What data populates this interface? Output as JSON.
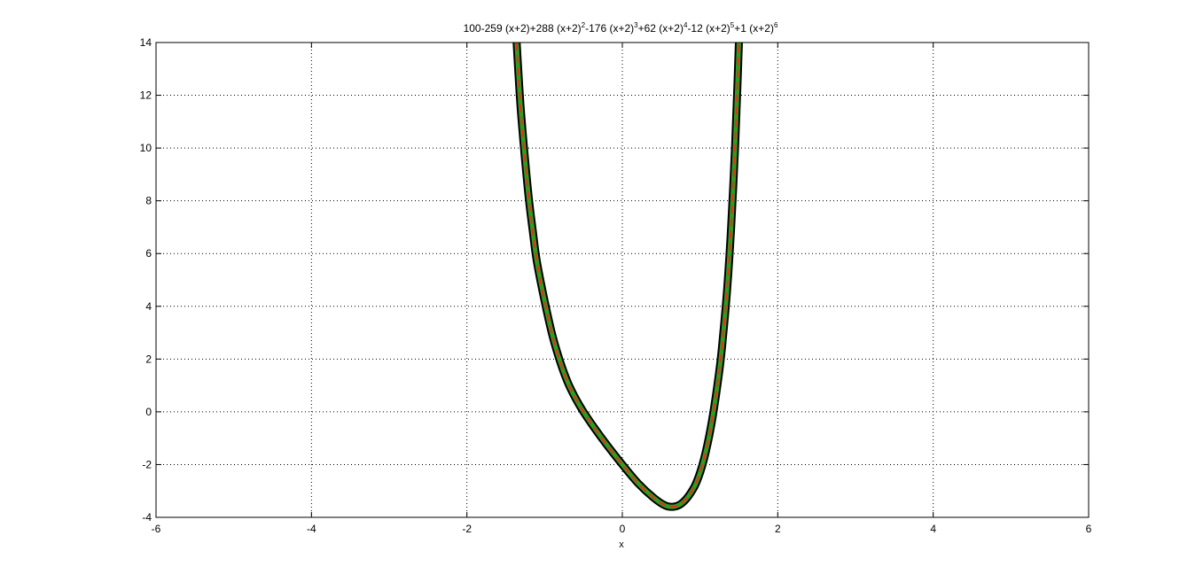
{
  "chart_data": {
    "type": "line",
    "title": {
      "segments": [
        {
          "text": "100-259 (x+2)+288 (x+2)",
          "sup": "2"
        },
        {
          "text": "-176 (x+2)",
          "sup": "3"
        },
        {
          "text": "+62 (x+2)",
          "sup": "4"
        },
        {
          "text": "-12 (x+2)",
          "sup": "5"
        },
        {
          "text": "+1 (x+2)",
          "sup": "6"
        }
      ]
    },
    "xlabel": "x",
    "ylabel": "",
    "xlim": [
      -6,
      6
    ],
    "ylim": [
      -4,
      14
    ],
    "xticks": [
      -6,
      -4,
      -2,
      0,
      2,
      4,
      6
    ],
    "yticks": [
      -4,
      -2,
      0,
      2,
      4,
      6,
      8,
      10,
      12,
      14
    ],
    "grid": true,
    "series": [
      {
        "style": "thick black line with green inner stroke and red dashed center",
        "colors": {
          "outer": "#000000",
          "middle": "#2e9e1e",
          "inner": "#e0301e"
        },
        "points": [
          [
            -1.36,
            14.0
          ],
          [
            -1.33,
            12.5
          ],
          [
            -1.3,
            11.2
          ],
          [
            -1.25,
            9.5
          ],
          [
            -1.2,
            8.0
          ],
          [
            -1.15,
            6.8
          ],
          [
            -1.1,
            5.7
          ],
          [
            -1.0,
            4.2
          ],
          [
            -0.9,
            2.9
          ],
          [
            -0.8,
            1.9
          ],
          [
            -0.7,
            1.1
          ],
          [
            -0.6,
            0.5
          ],
          [
            -0.5,
            0.0
          ],
          [
            -0.35,
            -0.65
          ],
          [
            -0.2,
            -1.25
          ],
          [
            0.0,
            -2.0
          ],
          [
            0.2,
            -2.7
          ],
          [
            0.4,
            -3.25
          ],
          [
            0.55,
            -3.55
          ],
          [
            0.65,
            -3.6
          ],
          [
            0.75,
            -3.5
          ],
          [
            0.85,
            -3.2
          ],
          [
            0.95,
            -2.7
          ],
          [
            1.05,
            -1.8
          ],
          [
            1.15,
            -0.4
          ],
          [
            1.25,
            1.6
          ],
          [
            1.3,
            3.0
          ],
          [
            1.35,
            4.7
          ],
          [
            1.4,
            7.0
          ],
          [
            1.45,
            10.0
          ],
          [
            1.48,
            12.3
          ],
          [
            1.5,
            14.0
          ]
        ]
      }
    ]
  }
}
